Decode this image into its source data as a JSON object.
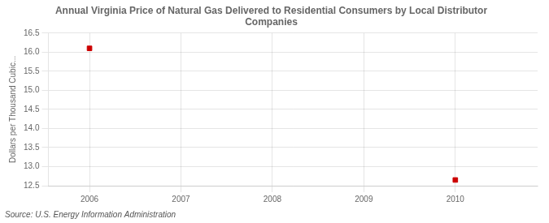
{
  "chart_data": {
    "type": "scatter",
    "title": "Annual Virginia Price of Natural Gas Delivered to Residential Consumers by Local Distributor\nCompanies",
    "ylabel": "Dollars per Thousand Cubic...",
    "annotation": "Source: U.S. Energy Information Administration",
    "x": [
      2006,
      2010
    ],
    "values": [
      16.1,
      12.65
    ],
    "color": "#cc0000",
    "marker": "square",
    "xlim": [
      2005.55,
      2010.9
    ],
    "ylim": [
      12.5,
      16.5
    ],
    "xticks": [
      2006,
      2007,
      2008,
      2009,
      2010
    ],
    "yticks": [
      12.5,
      {
        "value": 13.0,
        "label": "13.0"
      },
      13.5,
      {
        "value": 14.0,
        "label": "14.0"
      },
      14.5,
      {
        "value": 15.0,
        "label": "15.0"
      },
      15.5,
      {
        "value": 16.0,
        "label": "16.0"
      },
      16.5
    ],
    "grid": true
  }
}
